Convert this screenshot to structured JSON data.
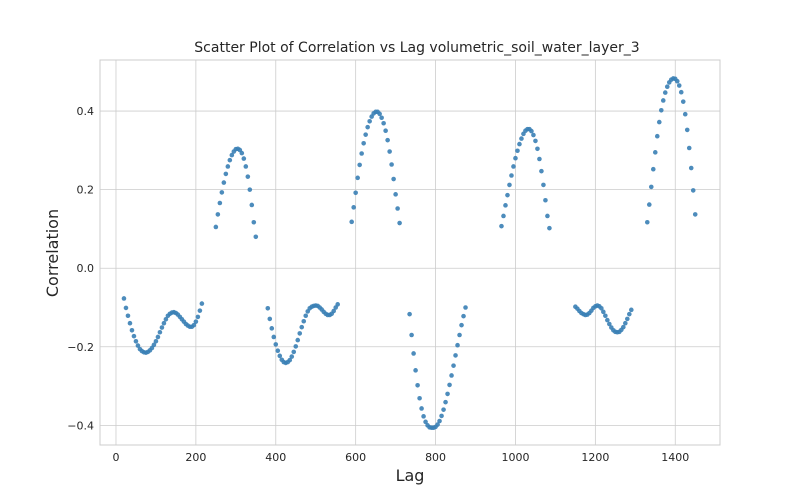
{
  "chart_data": {
    "type": "scatter",
    "title": "Scatter Plot of Correlation vs Lag volumetric_soil_water_layer_3",
    "xlabel": "Lag",
    "ylabel": "Correlation",
    "xlim": [
      -40,
      1512
    ],
    "ylim": [
      -0.45,
      0.53
    ],
    "xticks": [
      0,
      200,
      400,
      600,
      800,
      1000,
      1200,
      1400
    ],
    "yticks": [
      -0.4,
      -0.2,
      0.0,
      0.2,
      0.4
    ],
    "xtick_labels": [
      "0",
      "200",
      "400",
      "600",
      "800",
      "1000",
      "1200",
      "1400"
    ],
    "ytick_labels": [
      "−0.4",
      "−0.2",
      "0.0",
      "0.2",
      "0.4"
    ],
    "grid": true,
    "marker_color": "#3a7fb5",
    "points": [
      [
        20,
        -0.077
      ],
      [
        25,
        -0.101
      ],
      [
        30,
        -0.121
      ],
      [
        35,
        -0.14
      ],
      [
        40,
        -0.158
      ],
      [
        45,
        -0.173
      ],
      [
        50,
        -0.186
      ],
      [
        55,
        -0.197
      ],
      [
        60,
        -0.206
      ],
      [
        65,
        -0.211
      ],
      [
        70,
        -0.214
      ],
      [
        75,
        -0.215
      ],
      [
        80,
        -0.213
      ],
      [
        85,
        -0.209
      ],
      [
        90,
        -0.203
      ],
      [
        95,
        -0.195
      ],
      [
        100,
        -0.186
      ],
      [
        105,
        -0.175
      ],
      [
        110,
        -0.163
      ],
      [
        115,
        -0.151
      ],
      [
        120,
        -0.14
      ],
      [
        125,
        -0.13
      ],
      [
        130,
        -0.121
      ],
      [
        135,
        -0.116
      ],
      [
        140,
        -0.113
      ],
      [
        145,
        -0.112
      ],
      [
        150,
        -0.114
      ],
      [
        155,
        -0.118
      ],
      [
        160,
        -0.124
      ],
      [
        165,
        -0.13
      ],
      [
        170,
        -0.136
      ],
      [
        175,
        -0.142
      ],
      [
        180,
        -0.146
      ],
      [
        185,
        -0.149
      ],
      [
        190,
        -0.149
      ],
      [
        195,
        -0.145
      ],
      [
        200,
        -0.136
      ],
      [
        205,
        -0.124
      ],
      [
        210,
        -0.108
      ],
      [
        215,
        -0.09
      ],
      [
        250,
        0.105
      ],
      [
        255,
        0.137
      ],
      [
        260,
        0.166
      ],
      [
        265,
        0.193
      ],
      [
        270,
        0.218
      ],
      [
        275,
        0.24
      ],
      [
        280,
        0.259
      ],
      [
        285,
        0.275
      ],
      [
        290,
        0.288
      ],
      [
        295,
        0.297
      ],
      [
        300,
        0.303
      ],
      [
        305,
        0.304
      ],
      [
        310,
        0.301
      ],
      [
        315,
        0.293
      ],
      [
        320,
        0.279
      ],
      [
        325,
        0.259
      ],
      [
        330,
        0.233
      ],
      [
        335,
        0.2
      ],
      [
        340,
        0.161
      ],
      [
        345,
        0.117
      ],
      [
        350,
        0.08
      ],
      [
        380,
        -0.102
      ],
      [
        385,
        -0.129
      ],
      [
        390,
        -0.153
      ],
      [
        395,
        -0.175
      ],
      [
        400,
        -0.194
      ],
      [
        405,
        -0.21
      ],
      [
        410,
        -0.223
      ],
      [
        415,
        -0.233
      ],
      [
        420,
        -0.239
      ],
      [
        425,
        -0.241
      ],
      [
        430,
        -0.239
      ],
      [
        435,
        -0.234
      ],
      [
        440,
        -0.225
      ],
      [
        445,
        -0.213
      ],
      [
        450,
        -0.199
      ],
      [
        455,
        -0.183
      ],
      [
        460,
        -0.166
      ],
      [
        465,
        -0.15
      ],
      [
        470,
        -0.135
      ],
      [
        475,
        -0.121
      ],
      [
        480,
        -0.11
      ],
      [
        485,
        -0.102
      ],
      [
        490,
        -0.098
      ],
      [
        495,
        -0.096
      ],
      [
        500,
        -0.095
      ],
      [
        505,
        -0.096
      ],
      [
        510,
        -0.1
      ],
      [
        515,
        -0.105
      ],
      [
        520,
        -0.111
      ],
      [
        525,
        -0.116
      ],
      [
        530,
        -0.119
      ],
      [
        535,
        -0.119
      ],
      [
        540,
        -0.116
      ],
      [
        545,
        -0.109
      ],
      [
        550,
        -0.1
      ],
      [
        555,
        -0.092
      ],
      [
        590,
        0.118
      ],
      [
        595,
        0.155
      ],
      [
        600,
        0.192
      ],
      [
        605,
        0.23
      ],
      [
        610,
        0.263
      ],
      [
        615,
        0.292
      ],
      [
        620,
        0.318
      ],
      [
        625,
        0.34
      ],
      [
        630,
        0.359
      ],
      [
        635,
        0.374
      ],
      [
        640,
        0.386
      ],
      [
        645,
        0.394
      ],
      [
        650,
        0.398
      ],
      [
        655,
        0.398
      ],
      [
        660,
        0.393
      ],
      [
        665,
        0.383
      ],
      [
        670,
        0.369
      ],
      [
        675,
        0.35
      ],
      [
        680,
        0.326
      ],
      [
        685,
        0.297
      ],
      [
        690,
        0.264
      ],
      [
        695,
        0.227
      ],
      [
        700,
        0.188
      ],
      [
        705,
        0.152
      ],
      [
        710,
        0.115
      ],
      [
        735,
        -0.117
      ],
      [
        740,
        -0.17
      ],
      [
        745,
        -0.217
      ],
      [
        750,
        -0.26
      ],
      [
        755,
        -0.298
      ],
      [
        760,
        -0.331
      ],
      [
        765,
        -0.357
      ],
      [
        770,
        -0.377
      ],
      [
        775,
        -0.391
      ],
      [
        780,
        -0.4
      ],
      [
        785,
        -0.405
      ],
      [
        790,
        -0.406
      ],
      [
        795,
        -0.406
      ],
      [
        800,
        -0.404
      ],
      [
        805,
        -0.398
      ],
      [
        810,
        -0.389
      ],
      [
        815,
        -0.376
      ],
      [
        820,
        -0.36
      ],
      [
        825,
        -0.341
      ],
      [
        830,
        -0.32
      ],
      [
        835,
        -0.297
      ],
      [
        840,
        -0.273
      ],
      [
        845,
        -0.248
      ],
      [
        850,
        -0.222
      ],
      [
        855,
        -0.196
      ],
      [
        860,
        -0.17
      ],
      [
        865,
        -0.145
      ],
      [
        870,
        -0.122
      ],
      [
        875,
        -0.1
      ],
      [
        965,
        0.107
      ],
      [
        970,
        0.133
      ],
      [
        975,
        0.16
      ],
      [
        980,
        0.186
      ],
      [
        985,
        0.212
      ],
      [
        990,
        0.236
      ],
      [
        995,
        0.259
      ],
      [
        1000,
        0.28
      ],
      [
        1005,
        0.299
      ],
      [
        1010,
        0.316
      ],
      [
        1015,
        0.33
      ],
      [
        1020,
        0.342
      ],
      [
        1025,
        0.35
      ],
      [
        1030,
        0.354
      ],
      [
        1035,
        0.354
      ],
      [
        1040,
        0.349
      ],
      [
        1045,
        0.339
      ],
      [
        1050,
        0.324
      ],
      [
        1055,
        0.304
      ],
      [
        1060,
        0.278
      ],
      [
        1065,
        0.247
      ],
      [
        1070,
        0.212
      ],
      [
        1075,
        0.173
      ],
      [
        1080,
        0.133
      ],
      [
        1085,
        0.102
      ],
      [
        1150,
        -0.098
      ],
      [
        1155,
        -0.103
      ],
      [
        1160,
        -0.109
      ],
      [
        1165,
        -0.114
      ],
      [
        1170,
        -0.117
      ],
      [
        1175,
        -0.119
      ],
      [
        1180,
        -0.118
      ],
      [
        1185,
        -0.114
      ],
      [
        1190,
        -0.108
      ],
      [
        1195,
        -0.101
      ],
      [
        1200,
        -0.097
      ],
      [
        1205,
        -0.095
      ],
      [
        1210,
        -0.097
      ],
      [
        1215,
        -0.102
      ],
      [
        1220,
        -0.111
      ],
      [
        1225,
        -0.121
      ],
      [
        1230,
        -0.132
      ],
      [
        1235,
        -0.142
      ],
      [
        1240,
        -0.151
      ],
      [
        1245,
        -0.158
      ],
      [
        1250,
        -0.162
      ],
      [
        1255,
        -0.163
      ],
      [
        1260,
        -0.162
      ],
      [
        1265,
        -0.157
      ],
      [
        1270,
        -0.15
      ],
      [
        1275,
        -0.14
      ],
      [
        1280,
        -0.129
      ],
      [
        1285,
        -0.117
      ],
      [
        1290,
        -0.106
      ],
      [
        1330,
        0.117
      ],
      [
        1335,
        0.162
      ],
      [
        1340,
        0.207
      ],
      [
        1345,
        0.252
      ],
      [
        1350,
        0.295
      ],
      [
        1355,
        0.336
      ],
      [
        1360,
        0.372
      ],
      [
        1365,
        0.402
      ],
      [
        1370,
        0.427
      ],
      [
        1375,
        0.447
      ],
      [
        1380,
        0.462
      ],
      [
        1385,
        0.473
      ],
      [
        1390,
        0.48
      ],
      [
        1395,
        0.483
      ],
      [
        1400,
        0.482
      ],
      [
        1405,
        0.476
      ],
      [
        1410,
        0.465
      ],
      [
        1415,
        0.448
      ],
      [
        1420,
        0.424
      ],
      [
        1425,
        0.392
      ],
      [
        1430,
        0.352
      ],
      [
        1435,
        0.306
      ],
      [
        1440,
        0.255
      ],
      [
        1445,
        0.198
      ],
      [
        1450,
        0.137
      ]
    ]
  }
}
